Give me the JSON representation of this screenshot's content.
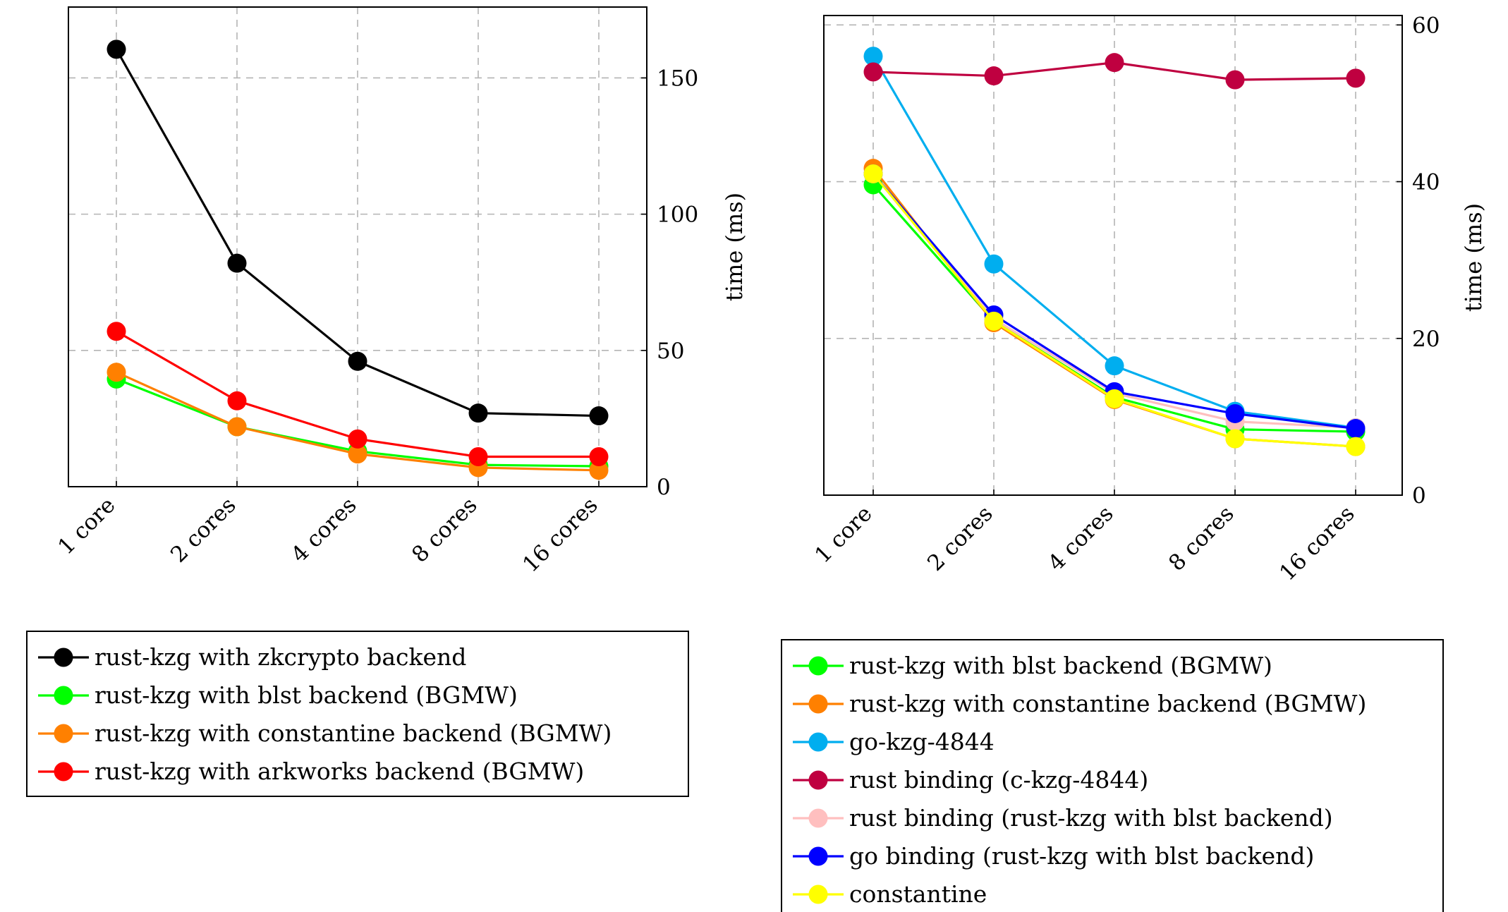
{
  "chart_data": [
    {
      "type": "line",
      "categories": [
        "1 core",
        "2 cores",
        "4 cores",
        "8 cores",
        "16 cores"
      ],
      "ylabel": "time (ms)",
      "ylim": [
        0,
        176
      ],
      "yticks": [
        0,
        50,
        100,
        150
      ],
      "grid": true,
      "legend_position": "below",
      "series": [
        {
          "name": "rust-kzg with zkcrypto backend",
          "color": "#000000",
          "values": [
            160.5,
            82,
            46,
            27,
            26
          ]
        },
        {
          "name": "rust-kzg with blst backend (BGMW)",
          "color": "#00ff00",
          "values": [
            39.5,
            22,
            13,
            8,
            7.5
          ]
        },
        {
          "name": "rust-kzg with constantine backend (BGMW)",
          "color": "#ff8000",
          "values": [
            42,
            22,
            12,
            7,
            6
          ]
        },
        {
          "name": "rust-kzg with arkworks backend (BGMW)",
          "color": "#ff0000",
          "values": [
            57,
            31.5,
            17.5,
            11,
            11
          ]
        }
      ]
    },
    {
      "type": "line",
      "categories": [
        "1 core",
        "2 cores",
        "4 cores",
        "8 cores",
        "16 cores"
      ],
      "ylabel": "time (ms)",
      "ylim": [
        0,
        61.2
      ],
      "yticks": [
        0,
        20,
        40,
        60
      ],
      "grid": true,
      "legend_position": "below",
      "series": [
        {
          "name": "rust-kzg with blst backend (BGMW)",
          "color": "#00ff00",
          "values": [
            39.6,
            22.2,
            12.5,
            8.4,
            8.1
          ]
        },
        {
          "name": "rust-kzg with constantine backend (BGMW)",
          "color": "#ff8000",
          "values": [
            41.7,
            22,
            12.2,
            7.2,
            6.2
          ]
        },
        {
          "name": "go-kzg-4844",
          "color": "#00aeef",
          "values": [
            56,
            29.5,
            16.5,
            10.7,
            8.6
          ]
        },
        {
          "name": "rust binding (c-kzg-4844)",
          "color": "#bf0040",
          "values": [
            54,
            53.5,
            55.2,
            53,
            53.2
          ]
        },
        {
          "name": "rust binding (rust-kzg with blst backend)",
          "color": "#ffbfbf",
          "values": [
            41,
            22.5,
            13,
            9.4,
            8.6
          ]
        },
        {
          "name": "go binding (rust-kzg with blst backend)",
          "color": "#0000ff",
          "values": [
            41,
            23,
            13.2,
            10.4,
            8.5
          ]
        },
        {
          "name": "constantine",
          "color": "#ffff00",
          "values": [
            41,
            22.2,
            12.3,
            7.2,
            6.2
          ]
        }
      ]
    }
  ]
}
